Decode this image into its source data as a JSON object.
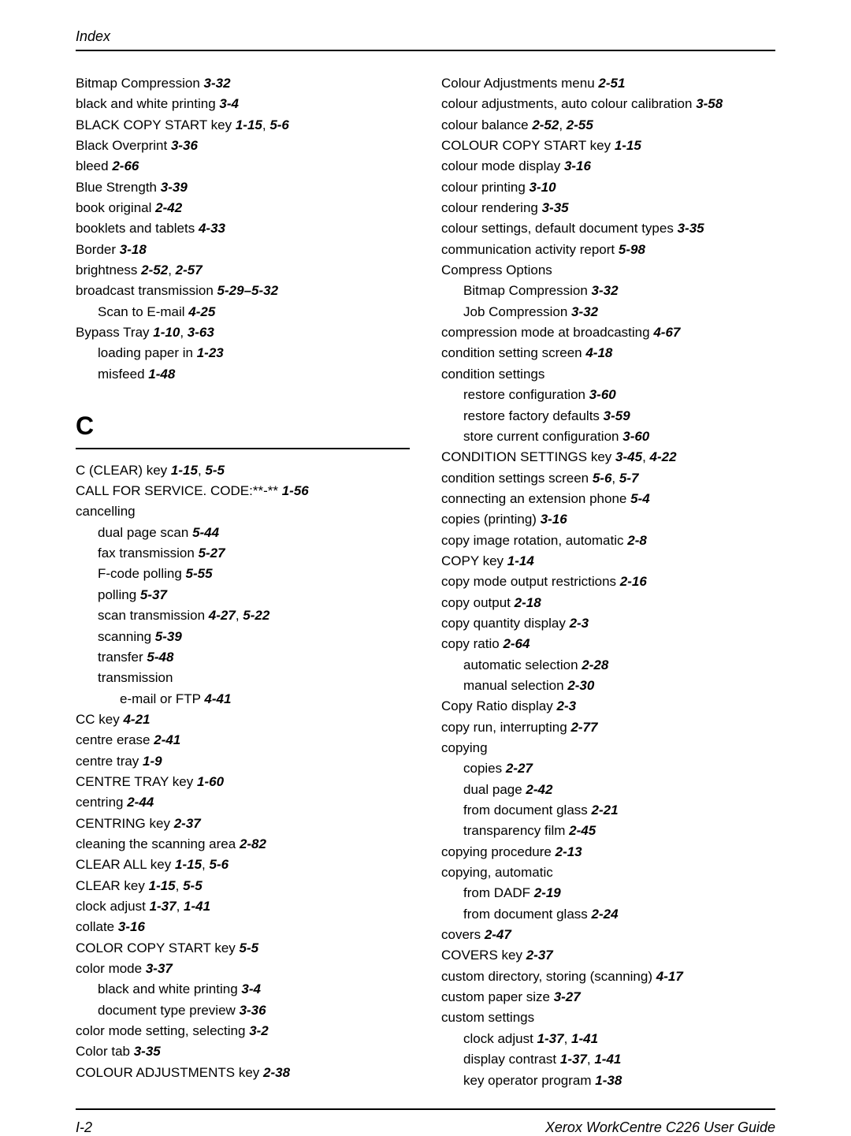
{
  "header": "Index",
  "footer_left": "I-2",
  "footer_right": "Xerox WorkCentre C226 User Guide",
  "section_letter": "C",
  "left_col_pre_letter": [
    {
      "text": "Bitmap Compression",
      "refs": "3-32",
      "indent": 0
    },
    {
      "text": "black and white printing",
      "refs": "3-4",
      "indent": 0
    },
    {
      "text": "BLACK COPY START key",
      "refs": "1-15, 5-6",
      "indent": 0,
      "sep": ", "
    },
    {
      "text": "Black Overprint",
      "refs": "3-36",
      "indent": 0
    },
    {
      "text": "bleed",
      "refs": "2-66",
      "indent": 0
    },
    {
      "text": "Blue Strength",
      "refs": "3-39",
      "indent": 0
    },
    {
      "text": "book original",
      "refs": "2-42",
      "indent": 0
    },
    {
      "text": "booklets and tablets",
      "refs": "4-33",
      "indent": 0
    },
    {
      "text": "Border",
      "refs": "3-18",
      "indent": 0
    },
    {
      "text": "brightness",
      "refs": "2-52, 2-57",
      "indent": 0
    },
    {
      "text": "broadcast transmission",
      "refs": "5-29–5-32",
      "indent": 0
    },
    {
      "text": "Scan to E-mail",
      "refs": "4-25",
      "indent": 1
    },
    {
      "text": "Bypass Tray",
      "refs": "1-10, 3-63",
      "indent": 0
    },
    {
      "text": "loading paper in",
      "refs": "1-23",
      "indent": 1
    },
    {
      "text": "misfeed",
      "refs": "1-48",
      "indent": 1
    }
  ],
  "left_col_post_letter": [
    {
      "text": "C (CLEAR) key",
      "refs": "1-15, 5-5",
      "indent": 0
    },
    {
      "text": "CALL FOR SERVICE. CODE:**-**",
      "refs": "1-56",
      "indent": 0
    },
    {
      "text": "cancelling",
      "refs": "",
      "indent": 0
    },
    {
      "text": "dual page scan",
      "refs": "5-44",
      "indent": 1
    },
    {
      "text": "fax transmission",
      "refs": "5-27",
      "indent": 1
    },
    {
      "text": "F-code polling",
      "refs": "5-55",
      "indent": 1
    },
    {
      "text": "polling",
      "refs": "5-37",
      "indent": 1
    },
    {
      "text": "scan transmission",
      "refs": "4-27, 5-22",
      "indent": 1
    },
    {
      "text": "scanning",
      "refs": "5-39",
      "indent": 1
    },
    {
      "text": "transfer",
      "refs": "5-48",
      "indent": 1
    },
    {
      "text": "transmission",
      "refs": "",
      "indent": 1
    },
    {
      "text": "e-mail or FTP",
      "refs": "4-41",
      "indent": 2
    },
    {
      "text": "CC key",
      "refs": "4-21",
      "indent": 0
    },
    {
      "text": "centre erase",
      "refs": "2-41",
      "indent": 0
    },
    {
      "text": "centre tray",
      "refs": "1-9",
      "indent": 0
    },
    {
      "text": "CENTRE TRAY key",
      "refs": "1-60",
      "indent": 0
    },
    {
      "text": "centring",
      "refs": "2-44",
      "indent": 0
    },
    {
      "text": "CENTRING key",
      "refs": "2-37",
      "indent": 0
    },
    {
      "text": "cleaning the scanning area",
      "refs": "2-82",
      "indent": 0
    },
    {
      "text": "CLEAR ALL key",
      "refs": "1-15, 5-6",
      "indent": 0
    },
    {
      "text": "CLEAR key",
      "refs": "1-15, 5-5",
      "indent": 0
    },
    {
      "text": "clock adjust",
      "refs": "1-37, 1-41",
      "indent": 0
    },
    {
      "text": "collate",
      "refs": "3-16",
      "indent": 0
    },
    {
      "text": "COLOR COPY START key",
      "refs": "5-5",
      "indent": 0
    },
    {
      "text": "color mode",
      "refs": "3-37",
      "indent": 0
    },
    {
      "text": "black and white printing",
      "refs": "3-4",
      "indent": 1
    },
    {
      "text": "document type preview",
      "refs": "3-36",
      "indent": 1
    },
    {
      "text": "color mode setting, selecting",
      "refs": "3-2",
      "indent": 0
    },
    {
      "text": "Color tab",
      "refs": "3-35",
      "indent": 0
    },
    {
      "text": "COLOUR ADJUSTMENTS key",
      "refs": "2-38",
      "indent": 0
    }
  ],
  "right_col": [
    {
      "text": "Colour Adjustments menu",
      "refs": "2-51",
      "indent": 0
    },
    {
      "text": "colour adjustments, auto colour calibration",
      "refs": "3-58",
      "indent": 0
    },
    {
      "text": "colour balance",
      "refs": "2-52, 2-55",
      "indent": 0
    },
    {
      "text": "COLOUR COPY START key",
      "refs": "1-15",
      "indent": 0
    },
    {
      "text": "colour mode display",
      "refs": "3-16",
      "indent": 0
    },
    {
      "text": "colour printing",
      "refs": "3-10",
      "indent": 0
    },
    {
      "text": "colour rendering",
      "refs": "3-35",
      "indent": 0
    },
    {
      "text": "colour settings, default document types",
      "refs": "3-35",
      "indent": 0
    },
    {
      "text": "communication activity report",
      "refs": "5-98",
      "indent": 0
    },
    {
      "text": "Compress Options",
      "refs": "",
      "indent": 0
    },
    {
      "text": "Bitmap Compression",
      "refs": "3-32",
      "indent": 1
    },
    {
      "text": "Job Compression",
      "refs": "3-32",
      "indent": 1
    },
    {
      "text": "compression mode at broadcasting",
      "refs": "4-67",
      "indent": 0
    },
    {
      "text": "condition setting screen",
      "refs": "4-18",
      "indent": 0
    },
    {
      "text": "condition settings",
      "refs": "",
      "indent": 0
    },
    {
      "text": "restore configuration",
      "refs": "3-60",
      "indent": 1
    },
    {
      "text": "restore factory defaults",
      "refs": "3-59",
      "indent": 1
    },
    {
      "text": "store current configuration",
      "refs": "3-60",
      "indent": 1
    },
    {
      "text": "CONDITION SETTINGS key",
      "refs": "3-45, 4-22",
      "indent": 0
    },
    {
      "text": "condition settings screen",
      "refs": "5-6, 5-7",
      "indent": 0
    },
    {
      "text": "connecting an extension phone",
      "refs": "5-4",
      "indent": 0
    },
    {
      "text": "copies (printing)",
      "refs": "3-16",
      "indent": 0
    },
    {
      "text": "copy image rotation, automatic",
      "refs": "2-8",
      "indent": 0
    },
    {
      "text": "COPY key",
      "refs": "1-14",
      "indent": 0
    },
    {
      "text": "copy mode output restrictions",
      "refs": "2-16",
      "indent": 0
    },
    {
      "text": "copy output",
      "refs": "2-18",
      "indent": 0
    },
    {
      "text": "copy quantity display",
      "refs": "2-3",
      "indent": 0
    },
    {
      "text": "copy ratio",
      "refs": "2-64",
      "indent": 0
    },
    {
      "text": "automatic selection",
      "refs": "2-28",
      "indent": 1
    },
    {
      "text": "manual selection",
      "refs": "2-30",
      "indent": 1
    },
    {
      "text": "Copy Ratio display",
      "refs": "2-3",
      "indent": 0
    },
    {
      "text": "copy run, interrupting",
      "refs": "2-77",
      "indent": 0
    },
    {
      "text": "copying",
      "refs": "",
      "indent": 0
    },
    {
      "text": "copies",
      "refs": "2-27",
      "indent": 1
    },
    {
      "text": "dual page",
      "refs": "2-42",
      "indent": 1
    },
    {
      "text": "from document glass",
      "refs": "2-21",
      "indent": 1
    },
    {
      "text": "transparency film",
      "refs": "2-45",
      "indent": 1
    },
    {
      "text": "copying procedure",
      "refs": "2-13",
      "indent": 0
    },
    {
      "text": "copying, automatic",
      "refs": "",
      "indent": 0
    },
    {
      "text": "from DADF",
      "refs": "2-19",
      "indent": 1
    },
    {
      "text": "from document glass",
      "refs": "2-24",
      "indent": 1
    },
    {
      "text": "covers",
      "refs": "2-47",
      "indent": 0
    },
    {
      "text": "COVERS key",
      "refs": "2-37",
      "indent": 0
    },
    {
      "text": "custom directory, storing (scanning)",
      "refs": "4-17",
      "indent": 0
    },
    {
      "text": "custom paper size",
      "refs": "3-27",
      "indent": 0
    },
    {
      "text": "custom settings",
      "refs": "",
      "indent": 0
    },
    {
      "text": "clock adjust",
      "refs": "1-37, 1-41",
      "indent": 1
    },
    {
      "text": "display contrast",
      "refs": "1-37, 1-41",
      "indent": 1
    },
    {
      "text": "key operator program",
      "refs": "1-38",
      "indent": 1
    }
  ]
}
